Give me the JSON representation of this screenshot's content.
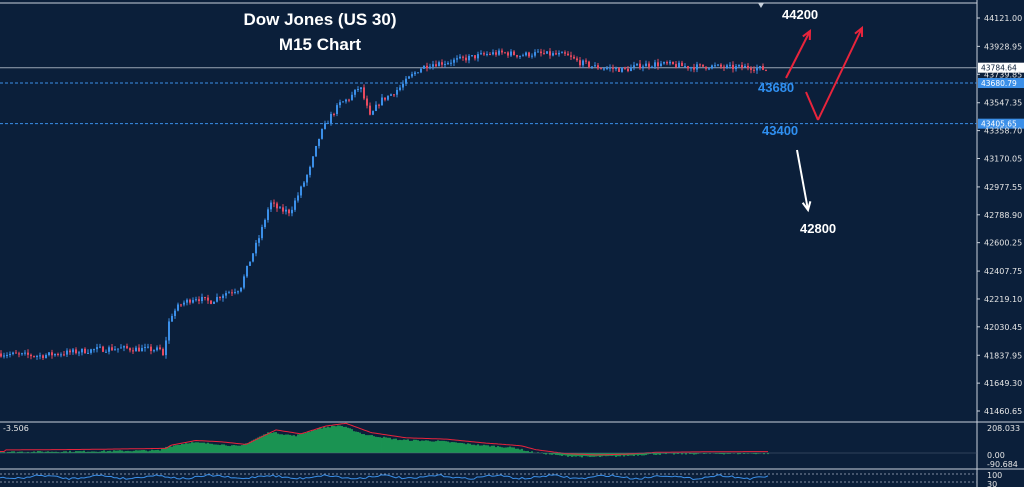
{
  "header": {
    "title_line1": "Dow Jones (US 30)",
    "title_line2": "M15 Chart"
  },
  "colors": {
    "background": "#0b1f3a",
    "bull": "#3b8fe8",
    "bear": "#e84a5f",
    "hist": "#22c55e",
    "arrow_red": "#e8243c",
    "arrow_white": "#ffffff",
    "label_blue": "#2f8ff0"
  },
  "chart_data": {
    "type": "candlestick",
    "ylim": [
      41300,
      44200
    ],
    "y_ticks": [
      "44121.00",
      "43928.95",
      "43739.85",
      "43547.35",
      "43358.70",
      "43170.05",
      "42977.55",
      "42788.90",
      "42600.25",
      "42407.75",
      "42219.10",
      "42030.45",
      "41837.95",
      "41649.30",
      "41460.65"
    ],
    "price_levels": [
      {
        "label": "43784.64",
        "value": 43784.64,
        "style": "solid-grey"
      },
      {
        "label": "43680.79",
        "value": 43680.79,
        "style": "dashed-blue"
      },
      {
        "label": "43405.65",
        "value": 43405.65,
        "style": "dashed-blue"
      }
    ],
    "path": [
      [
        0,
        41850
      ],
      [
        20,
        41840
      ],
      [
        40,
        41835
      ],
      [
        60,
        41850
      ],
      [
        80,
        41865
      ],
      [
        100,
        41880
      ],
      [
        120,
        41885
      ],
      [
        140,
        41880
      ],
      [
        160,
        41875
      ],
      [
        163,
        41830
      ],
      [
        170,
        42100
      ],
      [
        180,
        42180
      ],
      [
        195,
        42230
      ],
      [
        210,
        42200
      ],
      [
        225,
        42260
      ],
      [
        240,
        42290
      ],
      [
        250,
        42480
      ],
      [
        260,
        42650
      ],
      [
        270,
        42870
      ],
      [
        280,
        42820
      ],
      [
        290,
        42810
      ],
      [
        300,
        42950
      ],
      [
        310,
        43100
      ],
      [
        320,
        43330
      ],
      [
        330,
        43450
      ],
      [
        340,
        43540
      ],
      [
        350,
        43580
      ],
      [
        360,
        43660
      ],
      [
        370,
        43450
      ],
      [
        380,
        43560
      ],
      [
        390,
        43600
      ],
      [
        400,
        43650
      ],
      [
        410,
        43720
      ],
      [
        420,
        43780
      ],
      [
        430,
        43810
      ],
      [
        445,
        43820
      ],
      [
        460,
        43840
      ],
      [
        475,
        43860
      ],
      [
        490,
        43880
      ],
      [
        505,
        43885
      ],
      [
        520,
        43870
      ],
      [
        535,
        43880
      ],
      [
        550,
        43875
      ],
      [
        565,
        43870
      ],
      [
        580,
        43820
      ],
      [
        595,
        43790
      ],
      [
        610,
        43780
      ],
      [
        625,
        43770
      ],
      [
        640,
        43800
      ],
      [
        655,
        43810
      ],
      [
        670,
        43805
      ],
      [
        690,
        43790
      ],
      [
        710,
        43795
      ],
      [
        730,
        43785
      ],
      [
        750,
        43790
      ],
      [
        768,
        43770
      ]
    ],
    "indicator": {
      "label": "-3.506",
      "ticks": [
        "208.033",
        "0.00",
        "-90.684"
      ],
      "series": [
        [
          0,
          4
        ],
        [
          40,
          5
        ],
        [
          80,
          6
        ],
        [
          120,
          8
        ],
        [
          160,
          10
        ],
        [
          165,
          22
        ],
        [
          190,
          40
        ],
        [
          215,
          35
        ],
        [
          240,
          25
        ],
        [
          270,
          80
        ],
        [
          295,
          65
        ],
        [
          320,
          95
        ],
        [
          340,
          105
        ],
        [
          365,
          70
        ],
        [
          400,
          50
        ],
        [
          440,
          45
        ],
        [
          480,
          30
        ],
        [
          515,
          20
        ],
        [
          530,
          5
        ],
        [
          560,
          -10
        ],
        [
          590,
          -15
        ],
        [
          620,
          -12
        ],
        [
          650,
          -5
        ],
        [
          700,
          -3
        ],
        [
          768,
          -2
        ]
      ]
    },
    "oscillator_ticks": [
      "100",
      "30"
    ],
    "annotations": [
      {
        "label": "44200",
        "color": "white"
      },
      {
        "label": "43680",
        "color": "blue"
      },
      {
        "label": "43400",
        "color": "blue"
      },
      {
        "label": "42800",
        "color": "white"
      }
    ]
  }
}
